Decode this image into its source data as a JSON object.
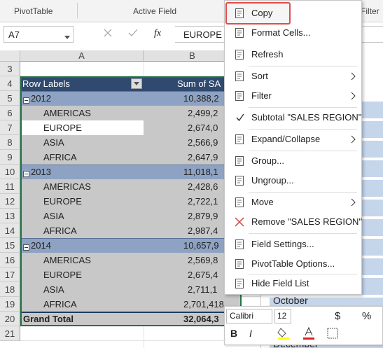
{
  "ribbon": {
    "groups": [
      "PivotTable",
      "Active Field",
      "Filter"
    ]
  },
  "formula_bar": {
    "name_box": "A7",
    "function_label": "fx",
    "value": "EUROPE"
  },
  "columns": [
    "A",
    "B"
  ],
  "row_numbers": [
    3,
    4,
    5,
    6,
    7,
    8,
    9,
    10,
    11,
    12,
    13,
    14,
    15,
    16,
    17,
    18,
    19,
    20,
    21
  ],
  "pivot": {
    "header": [
      "Row Labels",
      "Sum of SA"
    ],
    "rows": [
      {
        "label": "2012",
        "value": "10,388,2"
      },
      {
        "label": "AMERICAS",
        "value": "2,499,2"
      },
      {
        "label": "EUROPE",
        "value": "2,674,0"
      },
      {
        "label": "ASIA",
        "value": "2,566,9"
      },
      {
        "label": "AFRICA",
        "value": "2,647,9"
      },
      {
        "label": "2013",
        "value": "11,018,1"
      },
      {
        "label": "AMERICAS",
        "value": "2,428,6"
      },
      {
        "label": "EUROPE",
        "value": "2,722,1"
      },
      {
        "label": "ASIA",
        "value": "2,879,9"
      },
      {
        "label": "AFRICA",
        "value": "2,987,4"
      },
      {
        "label": "2014",
        "value": "10,657,9"
      },
      {
        "label": "AMERICAS",
        "value": "2,569,8"
      },
      {
        "label": "EUROPE",
        "value": "2,675,4"
      },
      {
        "label": "ASIA",
        "value": "2,711,1"
      },
      {
        "label": "AFRICA",
        "value": "2,701,418"
      }
    ],
    "total": {
      "label": "Grand Total",
      "value": "32,064,3"
    }
  },
  "slicer": {
    "items": [
      "October",
      "December"
    ]
  },
  "context_menu": {
    "items": [
      {
        "label": "Copy",
        "highlighted": true
      },
      {
        "label": "Format Cells..."
      },
      {
        "label": "Refresh"
      },
      {
        "label": "Sort",
        "submenu": true
      },
      {
        "label": "Filter",
        "submenu": true
      },
      {
        "label": "Subtotal \"SALES REGION\"",
        "checked": true
      },
      {
        "label": "Expand/Collapse",
        "submenu": true
      },
      {
        "label": "Group..."
      },
      {
        "label": "Ungroup..."
      },
      {
        "label": "Move",
        "submenu": true
      },
      {
        "label": "Remove \"SALES REGION\"",
        "remove": true
      },
      {
        "label": "Field Settings..."
      },
      {
        "label": "PivotTable Options..."
      },
      {
        "label": "Hide Field List"
      }
    ]
  },
  "mini_toolbar": {
    "font": "Calibri",
    "size": "12",
    "bold": "B",
    "italic": "I",
    "currency": "$",
    "percent": "%"
  }
}
